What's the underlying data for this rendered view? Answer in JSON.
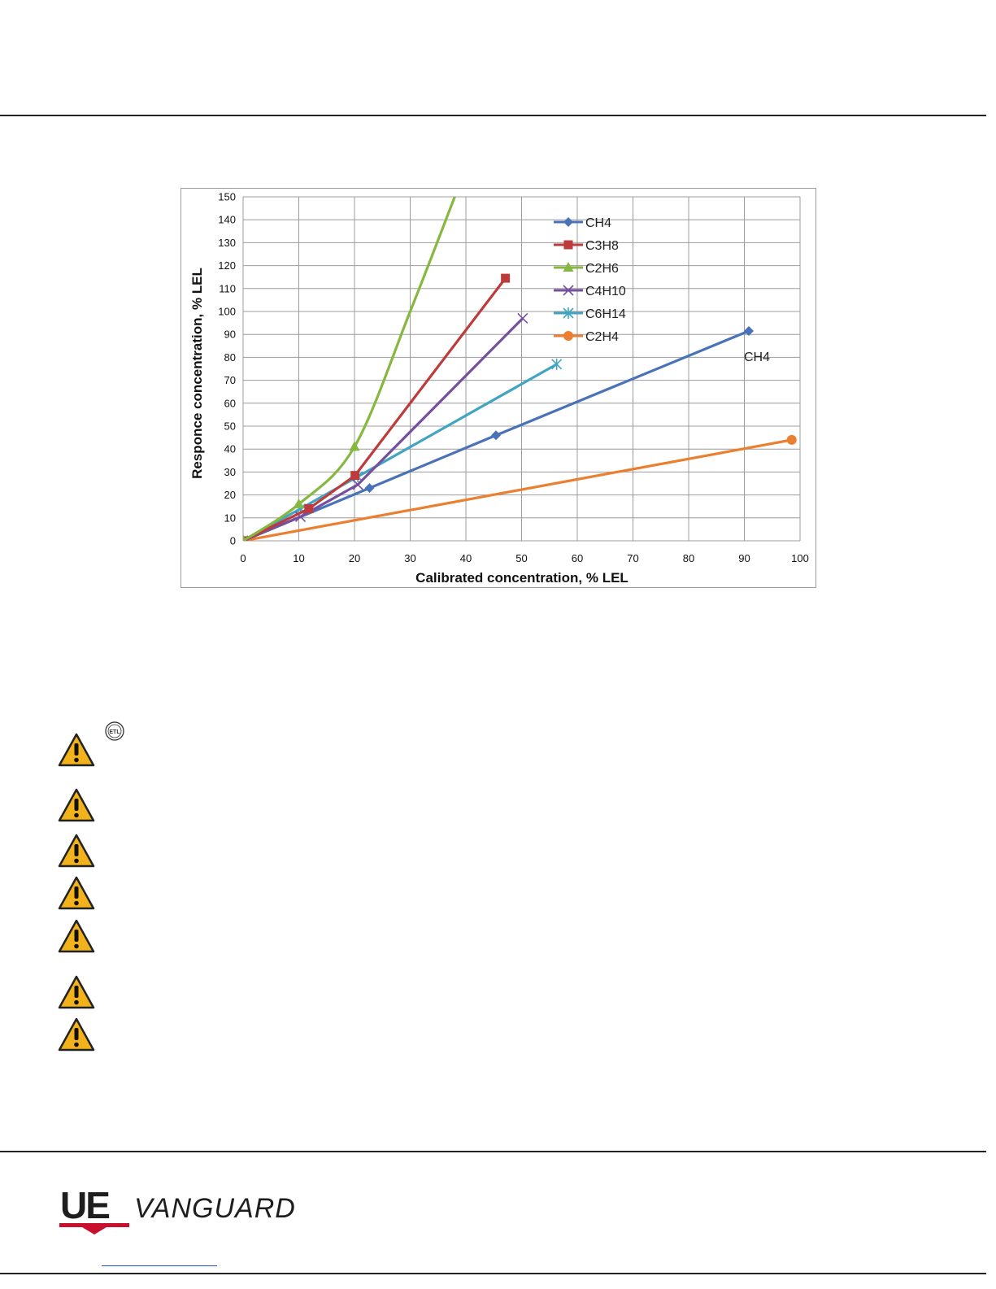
{
  "chart_data": {
    "type": "line",
    "xlabel": "Calibrated concentration, % LEL",
    "ylabel": "Responce concentration, % LEL",
    "xlim": [
      0,
      100
    ],
    "ylim": [
      0,
      150
    ],
    "xticks": [
      "0",
      "10",
      "20",
      "30",
      "40",
      "50",
      "60",
      "70",
      "80",
      "90",
      "100"
    ],
    "yticks": [
      "0",
      "10",
      "20",
      "30",
      "40",
      "50",
      "60",
      "70",
      "80",
      "90",
      "100",
      "110",
      "120",
      "130",
      "140",
      "150"
    ],
    "grid": true,
    "legend_position": "top-right",
    "annotation": "CH4",
    "series": [
      {
        "name": "CH4",
        "color": "#4a72b8",
        "marker": "diamond",
        "x": [
          0,
          22.7,
          45.4,
          90.8
        ],
        "y": [
          0,
          23,
          46,
          91.5
        ]
      },
      {
        "name": "C3H8",
        "color": "#be3b3b",
        "marker": "square",
        "x": [
          0,
          11.8,
          20.1,
          47.1
        ],
        "y": [
          0,
          14,
          28.5,
          114.5
        ]
      },
      {
        "name": "C2H6",
        "color": "#86b840",
        "marker": "triangle",
        "x": [
          0,
          10,
          20,
          30,
          38
        ],
        "y": [
          0,
          16,
          41,
          100,
          150
        ]
      },
      {
        "name": "C4H10",
        "color": "#7650a0",
        "marker": "x",
        "x": [
          0,
          10.3,
          20.6,
          50.2
        ],
        "y": [
          0,
          10.5,
          24.5,
          97
        ]
      },
      {
        "name": "C6H14",
        "color": "#41a5c2",
        "marker": "asterisk",
        "x": [
          0,
          10.3,
          20.6,
          56.3
        ],
        "y": [
          0,
          14,
          28,
          77
        ]
      },
      {
        "name": "C2H4",
        "color": "#ec7f2f",
        "marker": "circle",
        "x": [
          0,
          98.5
        ],
        "y": [
          0,
          44
        ]
      }
    ]
  },
  "logo": {
    "brand_ue": "UE",
    "brand_name": "VANGUARD",
    "colors": {
      "ue": "#1e1e1e",
      "accent": "#c8102e"
    }
  },
  "etl_mark": {
    "text": "ETL"
  },
  "warnings": {
    "count": 7,
    "icon": "warning-triangle-icon",
    "color": "#f2b21b"
  }
}
